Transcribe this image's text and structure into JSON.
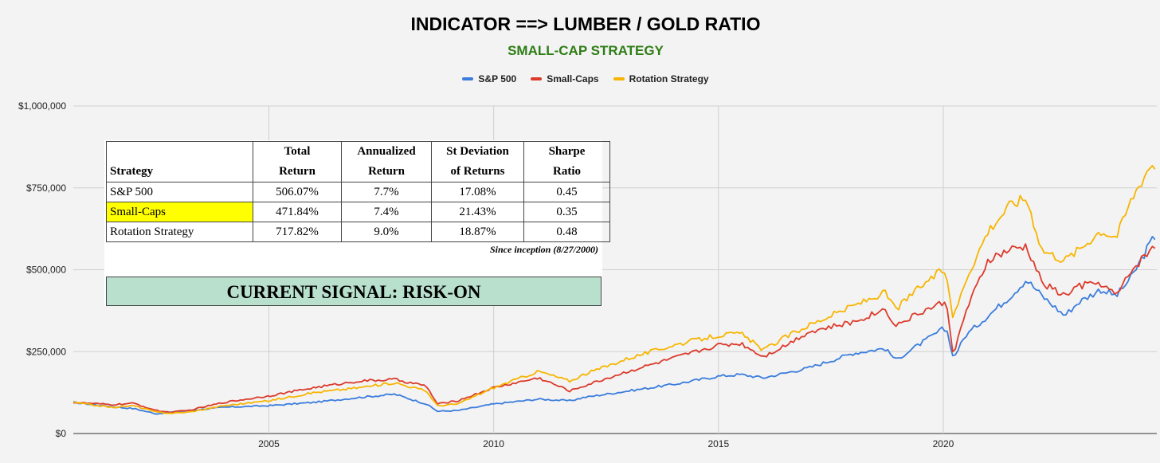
{
  "chart_data": {
    "type": "line",
    "title": "INDICATOR ==> LUMBER / GOLD RATIO",
    "subtitle": "SMALL-CAP STRATEGY",
    "xlabel": "",
    "ylabel": "",
    "xlim": [
      2000.65,
      2024.75
    ],
    "ylim": [
      0,
      1000000
    ],
    "x_ticks": [
      2005,
      2010,
      2015,
      2020
    ],
    "y_ticks": [
      0,
      250000,
      500000,
      750000,
      1000000
    ],
    "y_tick_labels": [
      "$0",
      "$250,000",
      "$500,000",
      "$750,000",
      "$1,000,000"
    ],
    "legend_position": "top-center",
    "grid": true,
    "x": [
      2000.65,
      2001.5,
      2002.0,
      2002.5,
      2002.8,
      2003.2,
      2004.0,
      2005.0,
      2006.0,
      2007.0,
      2007.8,
      2008.5,
      2008.75,
      2009.2,
      2010.0,
      2011.0,
      2011.7,
      2012.0,
      2013.0,
      2014.0,
      2015.0,
      2015.5,
      2016.0,
      2016.5,
      2017.0,
      2018.0,
      2018.7,
      2018.95,
      2019.5,
      2020.0,
      2020.1,
      2020.22,
      2020.5,
      2021.0,
      2021.5,
      2021.85,
      2022.2,
      2022.7,
      2023.0,
      2023.5,
      2023.85,
      2024.2,
      2024.6,
      2024.75
    ],
    "series": [
      {
        "name": "S&P 500",
        "color": "#3b7ddd",
        "values": [
          95000,
          82000,
          76000,
          60000,
          65000,
          70000,
          80000,
          85000,
          95000,
          110000,
          120000,
          90000,
          68000,
          70000,
          90000,
          105000,
          100000,
          110000,
          130000,
          150000,
          175000,
          180000,
          170000,
          185000,
          200000,
          245000,
          260000,
          225000,
          275000,
          320000,
          310000,
          230000,
          300000,
          360000,
          420000,
          470000,
          420000,
          360000,
          400000,
          440000,
          420000,
          480000,
          580000,
          610000
        ]
      },
      {
        "name": "Small-Caps",
        "color": "#dc3b2c",
        "values": [
          95000,
          88000,
          92000,
          70000,
          65000,
          70000,
          95000,
          115000,
          140000,
          160000,
          165000,
          145000,
          90000,
          100000,
          140000,
          170000,
          130000,
          145000,
          190000,
          230000,
          270000,
          275000,
          235000,
          270000,
          310000,
          340000,
          380000,
          330000,
          370000,
          400000,
          380000,
          240000,
          370000,
          530000,
          560000,
          570000,
          460000,
          420000,
          450000,
          460000,
          420000,
          500000,
          560000,
          580000
        ]
      },
      {
        "name": "Rotation Strategy",
        "color": "#f7b500",
        "values": [
          95000,
          80000,
          85000,
          65000,
          62000,
          65000,
          85000,
          100000,
          125000,
          140000,
          155000,
          130000,
          85000,
          90000,
          140000,
          190000,
          160000,
          180000,
          230000,
          270000,
          300000,
          305000,
          255000,
          295000,
          330000,
          390000,
          430000,
          380000,
          450000,
          500000,
          470000,
          350000,
          470000,
          620000,
          700000,
          720000,
          560000,
          530000,
          560000,
          620000,
          600000,
          720000,
          820000,
          820000
        ]
      }
    ]
  },
  "table": {
    "headers": [
      {
        "line1": "",
        "line2": "Strategy"
      },
      {
        "line1": "Total",
        "line2": "Return"
      },
      {
        "line1": "Annualized",
        "line2": "Return"
      },
      {
        "line1": "St Deviation",
        "line2": "of Returns"
      },
      {
        "line1": "Sharpe",
        "line2": "Ratio"
      }
    ],
    "rows": [
      [
        "S&P 500",
        "506.07%",
        "7.7%",
        "17.08%",
        "0.45"
      ],
      [
        "Small-Caps",
        "471.84%",
        "7.4%",
        "21.43%",
        "0.35"
      ],
      [
        "Rotation Strategy",
        "717.82%",
        "9.0%",
        "18.87%",
        "0.48"
      ]
    ],
    "footnote": "Since inception (8/27/2000)"
  },
  "signal": "CURRENT SIGNAL: RISK-ON",
  "highlight_color": "#ffff00",
  "signal_color": "#b8e0cd"
}
